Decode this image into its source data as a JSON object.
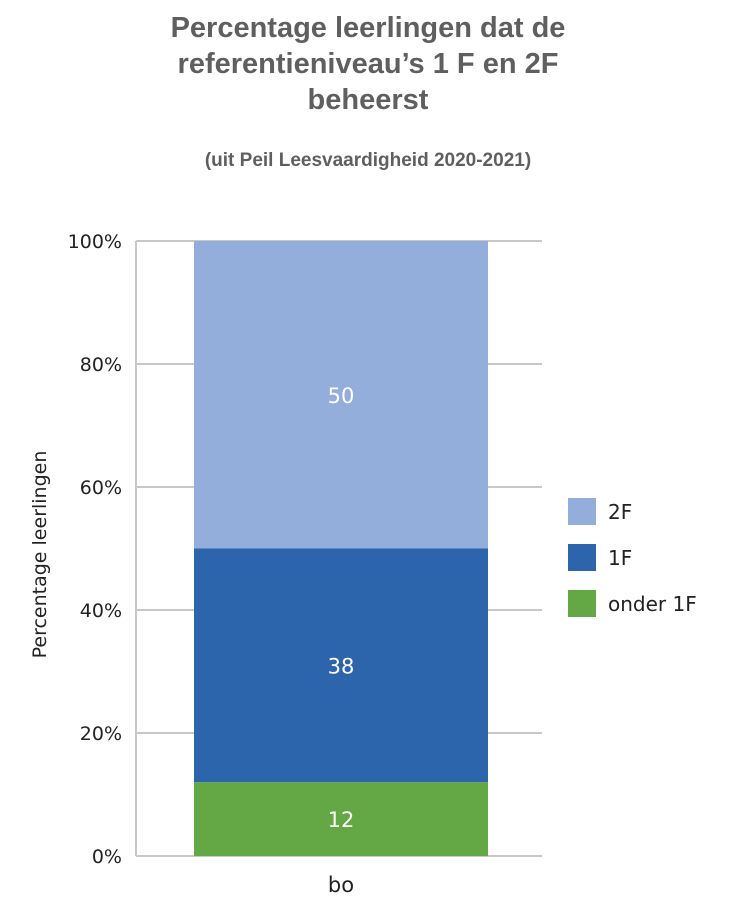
{
  "chart_data": {
    "type": "bar",
    "stacked": true,
    "title_lines": [
      "Percentage leerlingen dat de",
      "referentieniveau’s 1 F en 2F",
      "beheerst"
    ],
    "subtitle": "(uit Peil Leesvaardigheid 2020-2021)",
    "ylabel": "Percentage leerlingen",
    "xlabel": "",
    "categories": [
      "bo"
    ],
    "ylim": [
      0,
      100
    ],
    "yticks": [
      "0%",
      "20%",
      "40%",
      "60%",
      "80%",
      "100%"
    ],
    "ytick_values": [
      0,
      20,
      40,
      60,
      80,
      100
    ],
    "grid": true,
    "legend_position": "right",
    "series": [
      {
        "name": "onder 1F",
        "values": [
          12
        ],
        "color": "#63a844"
      },
      {
        "name": "1F",
        "values": [
          38
        ],
        "color": "#2d65ad"
      },
      {
        "name": "2F",
        "values": [
          50
        ],
        "color": "#93aedb"
      }
    ],
    "legend_order": [
      "2F",
      "1F",
      "onder 1F"
    ]
  }
}
